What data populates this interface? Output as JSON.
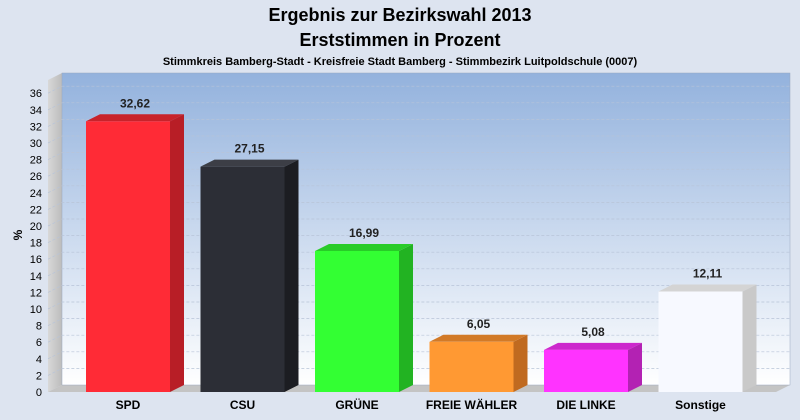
{
  "chart_data": {
    "type": "bar",
    "title": "Ergebnis zur Bezirkswahl 2013",
    "subtitle": "Erststimmen in Prozent",
    "subtitle2": "Stimmkreis Bamberg-Stadt - Kreisfreie Stadt Bamberg - Stimmbezirk Luitpoldschule (0007)",
    "ylabel": "%",
    "xlabel": "",
    "ylim": [
      0,
      37
    ],
    "yticks": [
      0,
      2,
      4,
      6,
      8,
      10,
      12,
      14,
      16,
      18,
      20,
      22,
      24,
      26,
      28,
      30,
      32,
      34,
      36
    ],
    "grid": true,
    "categories": [
      "SPD",
      "CSU",
      "GRÜNE",
      "FREIE WÄHLER",
      "DIE LINKE",
      "Sonstige"
    ],
    "values": [
      32.62,
      27.15,
      16.99,
      6.05,
      5.08,
      12.11
    ],
    "value_labels": [
      "32,62",
      "27,15",
      "16,99",
      "6,05",
      "5,08",
      "12,11"
    ],
    "colors": [
      "#ff2b36",
      "#2c2e36",
      "#33ff33",
      "#ff9933",
      "#ff33ff",
      "#f7f9ff"
    ],
    "side_colors": [
      "#b81e26",
      "#1c1d22",
      "#22b322",
      "#c06a20",
      "#b322b3",
      "#c9c9c9"
    ],
    "top_colors": [
      "#c8232b",
      "#3c3e46",
      "#29cc29",
      "#d27a27",
      "#cc28cc",
      "#d4d4d4"
    ]
  }
}
